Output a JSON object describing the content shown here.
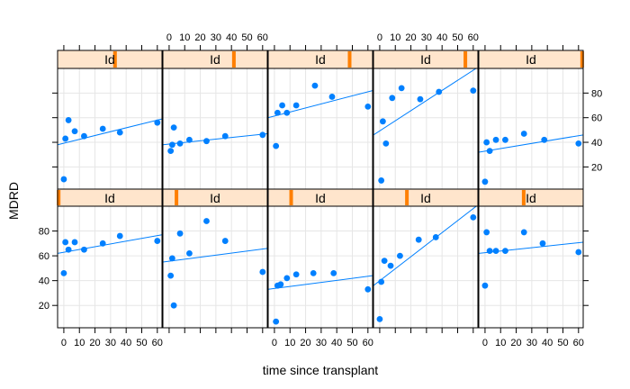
{
  "chart_data": {
    "type": "scatter",
    "layout": "lattice",
    "xlabel": "time since transplant",
    "ylabel": "MDRD",
    "xlim": [
      -4,
      63
    ],
    "ylim": [
      2,
      100
    ],
    "xticks": [
      0,
      10,
      20,
      30,
      40,
      50,
      60
    ],
    "yticks": [
      20,
      40,
      60,
      80
    ],
    "strip_var": "Id",
    "colors": {
      "point": "#0080ff",
      "line": "#0080ff",
      "strip_bg": "#ffe5cc",
      "strip_marker": "#ff7f00",
      "grid": "#e6e6e6"
    },
    "panels": [
      {
        "row": "top",
        "col": 1,
        "strip": "Id",
        "strip_pos": 0.55,
        "x": [
          0,
          1,
          3,
          7,
          13,
          25,
          36,
          60
        ],
        "y": [
          10,
          43,
          58,
          49,
          45,
          51,
          48,
          56
        ],
        "fit": [
          38,
          59
        ]
      },
      {
        "row": "top",
        "col": 2,
        "strip": "Id",
        "strip_pos": 0.68,
        "x": [
          1,
          2,
          3,
          7,
          13,
          24,
          36,
          60
        ],
        "y": [
          33,
          38,
          52,
          39,
          42,
          41,
          45,
          46
        ],
        "fit": [
          38,
          47
        ]
      },
      {
        "row": "top",
        "col": 3,
        "strip": "Id",
        "strip_pos": 0.78,
        "x": [
          1,
          2,
          5,
          8,
          14,
          26,
          37,
          60
        ],
        "y": [
          37,
          64,
          70,
          64,
          70,
          86,
          77,
          69
        ],
        "fit": [
          60,
          82
        ]
      },
      {
        "row": "top",
        "col": 4,
        "strip": "Id",
        "strip_pos": 0.88,
        "x": [
          1,
          2,
          4,
          8,
          14,
          26,
          38,
          60
        ],
        "y": [
          9,
          57,
          39,
          76,
          84,
          75,
          81,
          82
        ],
        "fit": [
          46,
          101
        ]
      },
      {
        "row": "top",
        "col": 5,
        "strip": "Id",
        "strip_pos": 0.99,
        "x": [
          0,
          1,
          3,
          7,
          13,
          25,
          38,
          60
        ],
        "y": [
          8,
          40,
          33,
          42,
          42,
          47,
          42,
          39
        ],
        "fit": [
          32,
          46
        ]
      },
      {
        "row": "bottom",
        "col": 1,
        "strip": "Id",
        "strip_pos": 0.01,
        "x": [
          0,
          1,
          3,
          7,
          13,
          25,
          36,
          60
        ],
        "y": [
          46,
          71,
          65,
          71,
          65,
          70,
          76,
          72
        ],
        "fit": [
          62,
          77
        ]
      },
      {
        "row": "bottom",
        "col": 2,
        "strip": "Id",
        "strip_pos": 0.13,
        "x": [
          1,
          2,
          3,
          7,
          13,
          24,
          36,
          60
        ],
        "y": [
          44,
          58,
          20,
          78,
          62,
          88,
          72,
          47
        ],
        "fit": [
          55,
          66
        ]
      },
      {
        "row": "bottom",
        "col": 3,
        "strip": "Id",
        "strip_pos": 0.22,
        "x": [
          1,
          2,
          4,
          8,
          14,
          25,
          38,
          60
        ],
        "y": [
          7,
          36,
          37,
          42,
          45,
          46,
          46,
          33
        ],
        "fit": [
          33,
          44
        ]
      },
      {
        "row": "bottom",
        "col": 4,
        "strip": "Id",
        "strip_pos": 0.32,
        "x": [
          0,
          1,
          3,
          7,
          13,
          25,
          36,
          60
        ],
        "y": [
          9,
          39,
          56,
          52,
          60,
          73,
          75,
          91
        ],
        "fit": [
          36,
          101
        ]
      },
      {
        "row": "bottom",
        "col": 5,
        "strip": "Id",
        "strip_pos": 0.43,
        "x": [
          0,
          1,
          3,
          7,
          13,
          25,
          37,
          60
        ],
        "y": [
          36,
          79,
          64,
          64,
          64,
          79,
          70,
          63
        ],
        "fit": [
          62,
          71
        ]
      }
    ]
  }
}
